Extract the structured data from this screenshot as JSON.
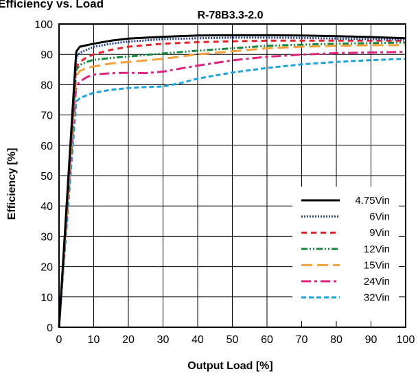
{
  "page_title": "Efficiency vs. Load",
  "chart_data": {
    "type": "line",
    "title": "R-78B3.3-2.0",
    "xlabel": "Output Load [%]",
    "ylabel": "Efficiency [%]",
    "xlim": [
      0,
      100
    ],
    "ylim": [
      0,
      100
    ],
    "xticks": [
      0,
      10,
      20,
      30,
      40,
      50,
      60,
      70,
      80,
      90,
      100
    ],
    "yticks": [
      0,
      10,
      20,
      30,
      40,
      50,
      60,
      70,
      80,
      90,
      100
    ],
    "grid": true,
    "legend_position": "bottom-right",
    "series": [
      {
        "name": "4.75Vin",
        "color": "#000000",
        "dash": "solid",
        "x": [
          0,
          4.8,
          5,
          6,
          8,
          10,
          15,
          20,
          30,
          40,
          50,
          60,
          70,
          80,
          90,
          100
        ],
        "y": [
          0,
          88,
          91,
          92.5,
          93,
          93.5,
          94.5,
          95.2,
          95.8,
          96.2,
          96.3,
          96.3,
          96.2,
          96,
          95.7,
          95.3
        ]
      },
      {
        "name": "6Vin",
        "color": "#1f3f9f",
        "dash": "dot",
        "x": [
          0,
          4.8,
          5,
          6,
          8,
          10,
          15,
          20,
          30,
          40,
          50,
          60,
          70,
          80,
          90,
          100
        ],
        "y": [
          0,
          86,
          89,
          90.5,
          91.5,
          92.5,
          93.5,
          94.2,
          95,
          95.3,
          95.5,
          95.5,
          95.4,
          95.2,
          95,
          94.8
        ]
      },
      {
        "name": "9Vin",
        "color": "#e8212a",
        "dash": "dash",
        "x": [
          0,
          4.8,
          5,
          6,
          8,
          10,
          15,
          20,
          30,
          40,
          50,
          60,
          70,
          80,
          90,
          100
        ],
        "y": [
          0,
          84,
          86,
          87.5,
          89,
          90,
          91.5,
          92.5,
          93.5,
          94,
          94.3,
          94.5,
          94.5,
          94.5,
          94.5,
          94.5
        ]
      },
      {
        "name": "12Vin",
        "color": "#138a3c",
        "dash": "dashdotdot",
        "x": [
          0,
          4.8,
          5,
          6,
          8,
          10,
          15,
          20,
          30,
          40,
          50,
          60,
          70,
          80,
          90,
          100
        ],
        "y": [
          0,
          83,
          85,
          86.5,
          87.5,
          88.2,
          88.8,
          89.3,
          90.3,
          91.2,
          92,
          92.8,
          93.2,
          93.5,
          93.7,
          93.9
        ]
      },
      {
        "name": "15Vin",
        "color": "#f5a13a",
        "dash": "longdash",
        "x": [
          0,
          4.8,
          5,
          6,
          8,
          10,
          15,
          20,
          30,
          40,
          50,
          60,
          70,
          80,
          90,
          100
        ],
        "y": [
          0,
          80,
          83,
          84.5,
          85.5,
          86,
          87,
          87.5,
          88.5,
          90,
          91,
          92,
          92.5,
          92.8,
          93,
          93
        ]
      },
      {
        "name": "24Vin",
        "color": "#e0237e",
        "dash": "dashdot",
        "x": [
          0,
          4.8,
          5,
          6,
          8,
          10,
          15,
          20,
          25,
          30,
          40,
          50,
          60,
          70,
          80,
          90,
          100
        ],
        "y": [
          0,
          77,
          79.5,
          81,
          82.5,
          83.3,
          83.8,
          83.9,
          83.8,
          84.3,
          86.3,
          88,
          89.2,
          89.9,
          90.4,
          90.6,
          90.8
        ]
      },
      {
        "name": "32Vin",
        "color": "#1aa3dc",
        "dash": "shortdash",
        "x": [
          0,
          4.8,
          5,
          6,
          8,
          10,
          15,
          20,
          25,
          30,
          35,
          40,
          50,
          60,
          70,
          80,
          90,
          100
        ],
        "y": [
          0,
          72,
          74.5,
          75.5,
          76.5,
          77.3,
          78.3,
          78.9,
          79.2,
          79.4,
          80.5,
          82,
          84,
          85.5,
          86.7,
          87.5,
          88.1,
          88.5
        ]
      }
    ]
  }
}
